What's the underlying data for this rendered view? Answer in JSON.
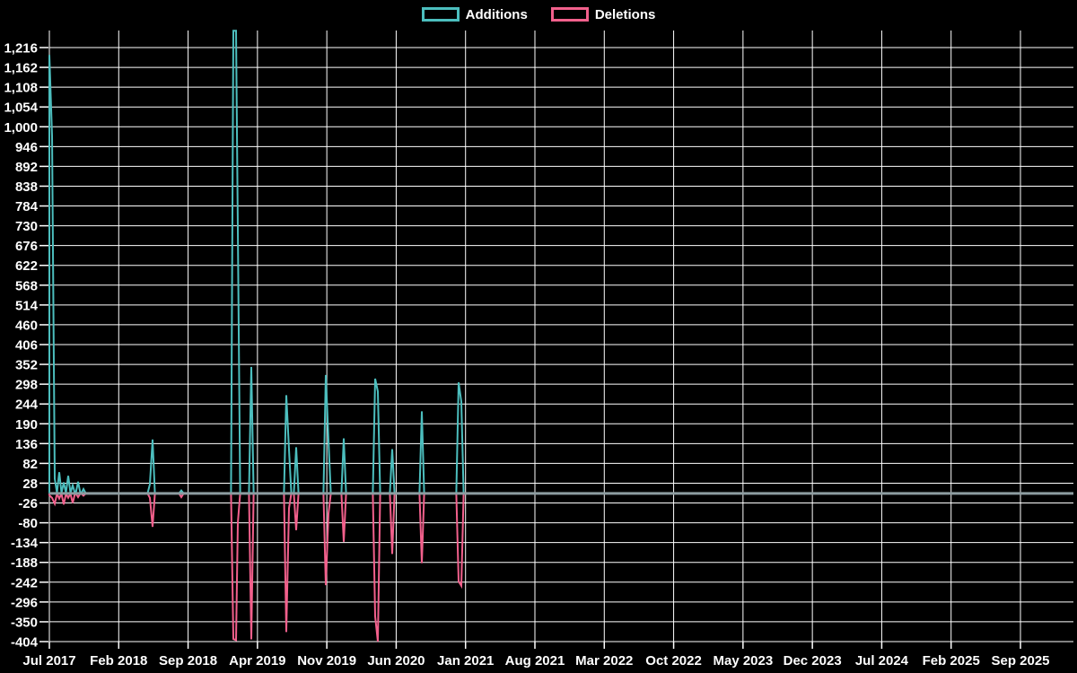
{
  "chart": {
    "legend": {
      "items": [
        {
          "label": "Additions",
          "color": "#4cbebe"
        },
        {
          "label": "Deletions",
          "color": "#f2608c"
        }
      ]
    }
  },
  "colors": {
    "background": "#000000",
    "grid": "#ffffff",
    "axis_text": "#ffffff",
    "zero_line": "#8d9ca0",
    "additions": "#4cbebe",
    "deletions": "#f2608c"
  },
  "chart_data": {
    "type": "line",
    "title": "",
    "description": "Weekly code additions and deletions over time; flat at zero after Jan 2021",
    "legend_position": "top-center",
    "grid": true,
    "x_axis": {
      "tick_labels": [
        "Jul 2017",
        "Feb 2018",
        "Sep 2018",
        "Apr 2019",
        "Nov 2019",
        "Jun 2020",
        "Jan 2021",
        "Aug 2021",
        "Mar 2022",
        "Oct 2022",
        "May 2023",
        "Dec 2023",
        "Jul 2024",
        "Feb 2025",
        "Sep 2025"
      ]
    },
    "y_axis": {
      "ticks": [
        1216,
        1162,
        1108,
        1054,
        1000,
        946,
        892,
        838,
        784,
        730,
        676,
        622,
        568,
        514,
        460,
        406,
        352,
        298,
        244,
        190,
        136,
        82,
        28,
        -26,
        -80,
        -134,
        -188,
        -242,
        -296,
        -350,
        -404
      ],
      "tick_step": 54,
      "format": "thousands-comma"
    },
    "ylim": [
      -404,
      1262
    ],
    "zero_line_value": 0,
    "series": [
      {
        "name": "Additions",
        "color": "#4cbebe",
        "key": "a"
      },
      {
        "name": "Deletions",
        "color": "#f2608c",
        "key": "d"
      }
    ],
    "events": [
      {
        "x": 55,
        "a": 1196,
        "d": -5
      },
      {
        "x": 58,
        "a": 975,
        "d": -12
      },
      {
        "x": 61,
        "a": 40,
        "d": -28
      },
      {
        "x": 66,
        "a": 58,
        "d": -14
      },
      {
        "x": 71,
        "a": 30,
        "d": -30
      },
      {
        "x": 76,
        "a": 48,
        "d": -12
      },
      {
        "x": 81,
        "a": 22,
        "d": -26
      },
      {
        "x": 87,
        "a": 32,
        "d": -10
      },
      {
        "x": 93,
        "a": 12,
        "d": -6
      },
      {
        "x": 167,
        "a": 25,
        "d": -12
      },
      {
        "x": 170,
        "a": 147,
        "d": -91
      },
      {
        "x": 202,
        "a": 8,
        "d": -10
      },
      {
        "x": 260,
        "a": 1262,
        "d": -397
      },
      {
        "x": 263,
        "a": 1262,
        "d": -400
      },
      {
        "x": 265,
        "a": 720,
        "d": -80
      },
      {
        "x": 280,
        "a": 345,
        "d": -398
      },
      {
        "x": 319,
        "a": 268,
        "d": -378
      },
      {
        "x": 322,
        "a": 120,
        "d": -40
      },
      {
        "x": 330,
        "a": 126,
        "d": -100
      },
      {
        "x": 363,
        "a": 323,
        "d": -250
      },
      {
        "x": 366,
        "a": 145,
        "d": -55
      },
      {
        "x": 383,
        "a": 150,
        "d": -132
      },
      {
        "x": 418,
        "a": 313,
        "d": -335
      },
      {
        "x": 421,
        "a": 278,
        "d": -404
      },
      {
        "x": 437,
        "a": 121,
        "d": -165
      },
      {
        "x": 470,
        "a": 224,
        "d": -190
      },
      {
        "x": 511,
        "a": 303,
        "d": -240
      },
      {
        "x": 514,
        "a": 250,
        "d": -252
      }
    ],
    "spike_summary": [
      {
        "period": "Jul 2017",
        "additions": 1196,
        "deletions": -30
      },
      {
        "period": "May 2018",
        "additions": 147,
        "deletions": -91
      },
      {
        "period": "Aug 2018",
        "additions": 8,
        "deletions": -10
      },
      {
        "period": "Jan-Feb 2019",
        "additions": 1262,
        "additions_clipped": true,
        "deletions": -400
      },
      {
        "period": "Mar 2019",
        "additions": 345,
        "deletions": -398
      },
      {
        "period": "Jun-Jul 2019",
        "additions": 268,
        "deletions": -378
      },
      {
        "period": "Oct-Nov 2019",
        "additions": 323,
        "deletions": -250
      },
      {
        "period": "Dec 2019",
        "additions": 150,
        "deletions": -132
      },
      {
        "period": "Mar 2020",
        "additions": 313,
        "deletions": -404
      },
      {
        "period": "May 2020",
        "additions": 121,
        "deletions": -165
      },
      {
        "period": "Aug 2020",
        "additions": 224,
        "deletions": -190
      },
      {
        "period": "Dec 2020",
        "additions": 303,
        "deletions": -252
      }
    ]
  }
}
